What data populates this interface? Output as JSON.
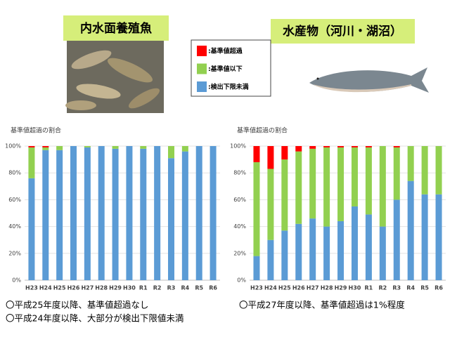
{
  "chart_data": [
    {
      "type": "stacked_bar",
      "title": "内水面養殖魚",
      "y_axis_title": "基準値超過の割合",
      "categories": [
        "H23",
        "H24",
        "H25",
        "H26",
        "H27",
        "H28",
        "H29",
        "H30",
        "R1",
        "R2",
        "R3",
        "R4",
        "R5",
        "R6"
      ],
      "series": [
        {
          "name": ":検出下限未満",
          "color": "#5b9bd5",
          "values": [
            76,
            97,
            97,
            100,
            99,
            100,
            98,
            100,
            98,
            100,
            91,
            96,
            100,
            100
          ]
        },
        {
          "name": ":基準値以下",
          "color": "#92d050",
          "values": [
            23,
            2,
            3,
            0,
            1,
            0,
            2,
            0,
            2,
            0,
            9,
            4,
            0,
            0
          ]
        },
        {
          "name": ":基準値超過",
          "color": "#ff0000",
          "values": [
            1,
            1,
            0,
            0,
            0,
            0,
            0,
            0,
            0,
            0,
            0,
            0,
            0,
            0
          ]
        }
      ],
      "ylim": [
        0,
        100
      ],
      "yticks": [
        {
          "value": 0,
          "label": "0%"
        },
        {
          "value": 20,
          "label": "20%"
        },
        {
          "value": 40,
          "label": "40%"
        },
        {
          "value": 60,
          "label": "60%"
        },
        {
          "value": 80,
          "label": "80%"
        },
        {
          "value": 100,
          "label": "100%"
        }
      ],
      "grid": true,
      "notes": [
        "〇平成25年度以降、基準値超過なし",
        "〇平成24年度以降、大部分が検出下限値未満"
      ]
    },
    {
      "type": "stacked_bar",
      "title": "水産物（河川・湖沼）",
      "y_axis_title": "基準値超過の割合",
      "categories": [
        "H23",
        "H24",
        "H25",
        "H26",
        "H27",
        "H28",
        "H29",
        "H30",
        "R1",
        "R2",
        "R3",
        "R4",
        "R5",
        "R6"
      ],
      "series": [
        {
          "color": "#5b9bd5",
          "values": [
            18,
            30,
            37,
            42,
            46,
            40,
            44,
            55,
            49,
            40,
            60,
            74,
            64,
            64
          ]
        },
        {
          "color": "#92d050",
          "values": [
            70,
            53,
            53,
            54,
            52,
            59,
            55,
            44,
            50,
            60,
            39,
            26,
            36,
            36
          ]
        },
        {
          "color": "#ff0000",
          "values": [
            12,
            17,
            10,
            4,
            2,
            1,
            1,
            1,
            1,
            0,
            1,
            0,
            0,
            0
          ]
        }
      ],
      "ylim": [
        0,
        100
      ],
      "yticks": [
        {
          "value": 0,
          "label": "0%"
        },
        {
          "value": 20,
          "label": "20%"
        },
        {
          "value": 40,
          "label": "40%"
        },
        {
          "value": 60,
          "label": "60%"
        },
        {
          "value": 80,
          "label": "80%"
        },
        {
          "value": 100,
          "label": "100%"
        }
      ],
      "grid": true,
      "notes": [
        "〇平成27年度以降、基準値超過は1%程度"
      ]
    }
  ]
}
